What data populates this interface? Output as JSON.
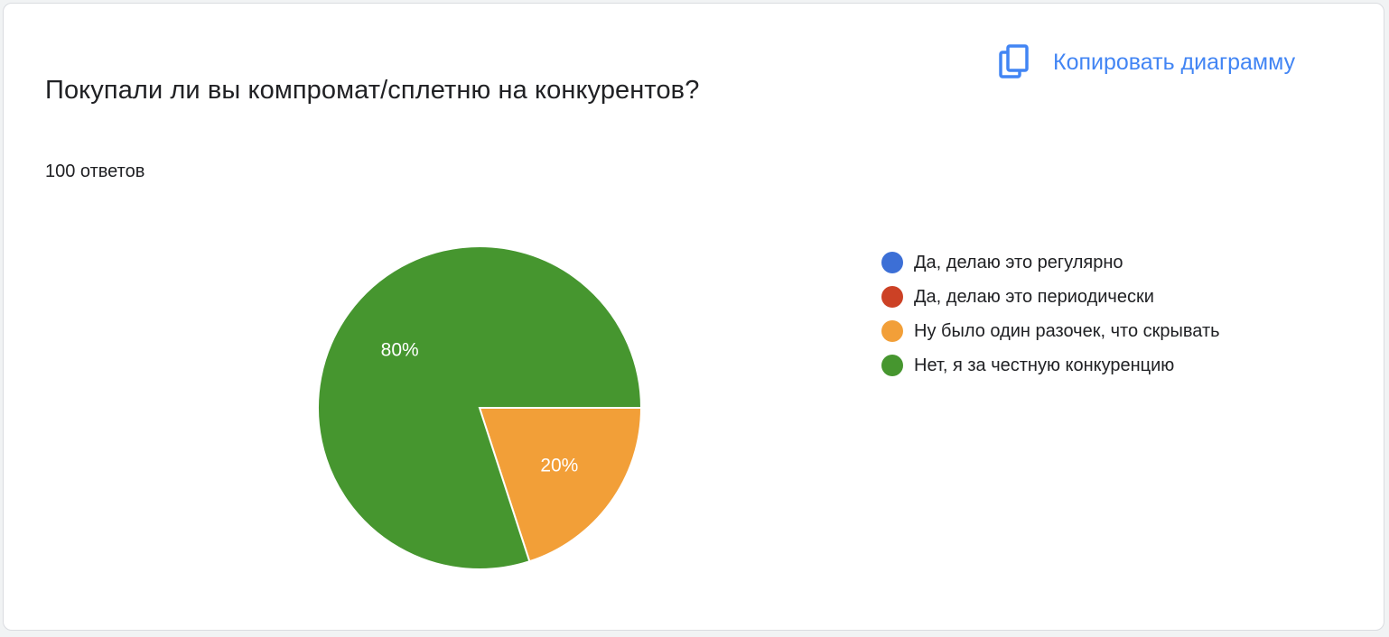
{
  "card": {
    "title": "Покупали ли вы компромат/сплетню на конкурентов?",
    "response_count": "100 ответов",
    "copy_label": "Копировать диаграмму"
  },
  "colors": {
    "accent": "#4285f4",
    "series": [
      "#3c6fd6",
      "#cc4125",
      "#f29f38",
      "#46962f"
    ]
  },
  "chart_data": {
    "type": "pie",
    "title": "Покупали ли вы компромат/сплетню на конкурентов?",
    "total_responses": 100,
    "slices": [
      {
        "label": "Да, делаю это регулярно",
        "value": 0,
        "color": "#3c6fd6",
        "data_label": ""
      },
      {
        "label": "Да, делаю это периодически",
        "value": 0,
        "color": "#cc4125",
        "data_label": ""
      },
      {
        "label": "Ну было один разочек, что скрывать",
        "value": 20,
        "color": "#f29f38",
        "data_label": "20%"
      },
      {
        "label": "Нет, я за честную конкуренцию",
        "value": 80,
        "color": "#46962f",
        "data_label": "80%"
      }
    ],
    "legend_position": "right"
  }
}
